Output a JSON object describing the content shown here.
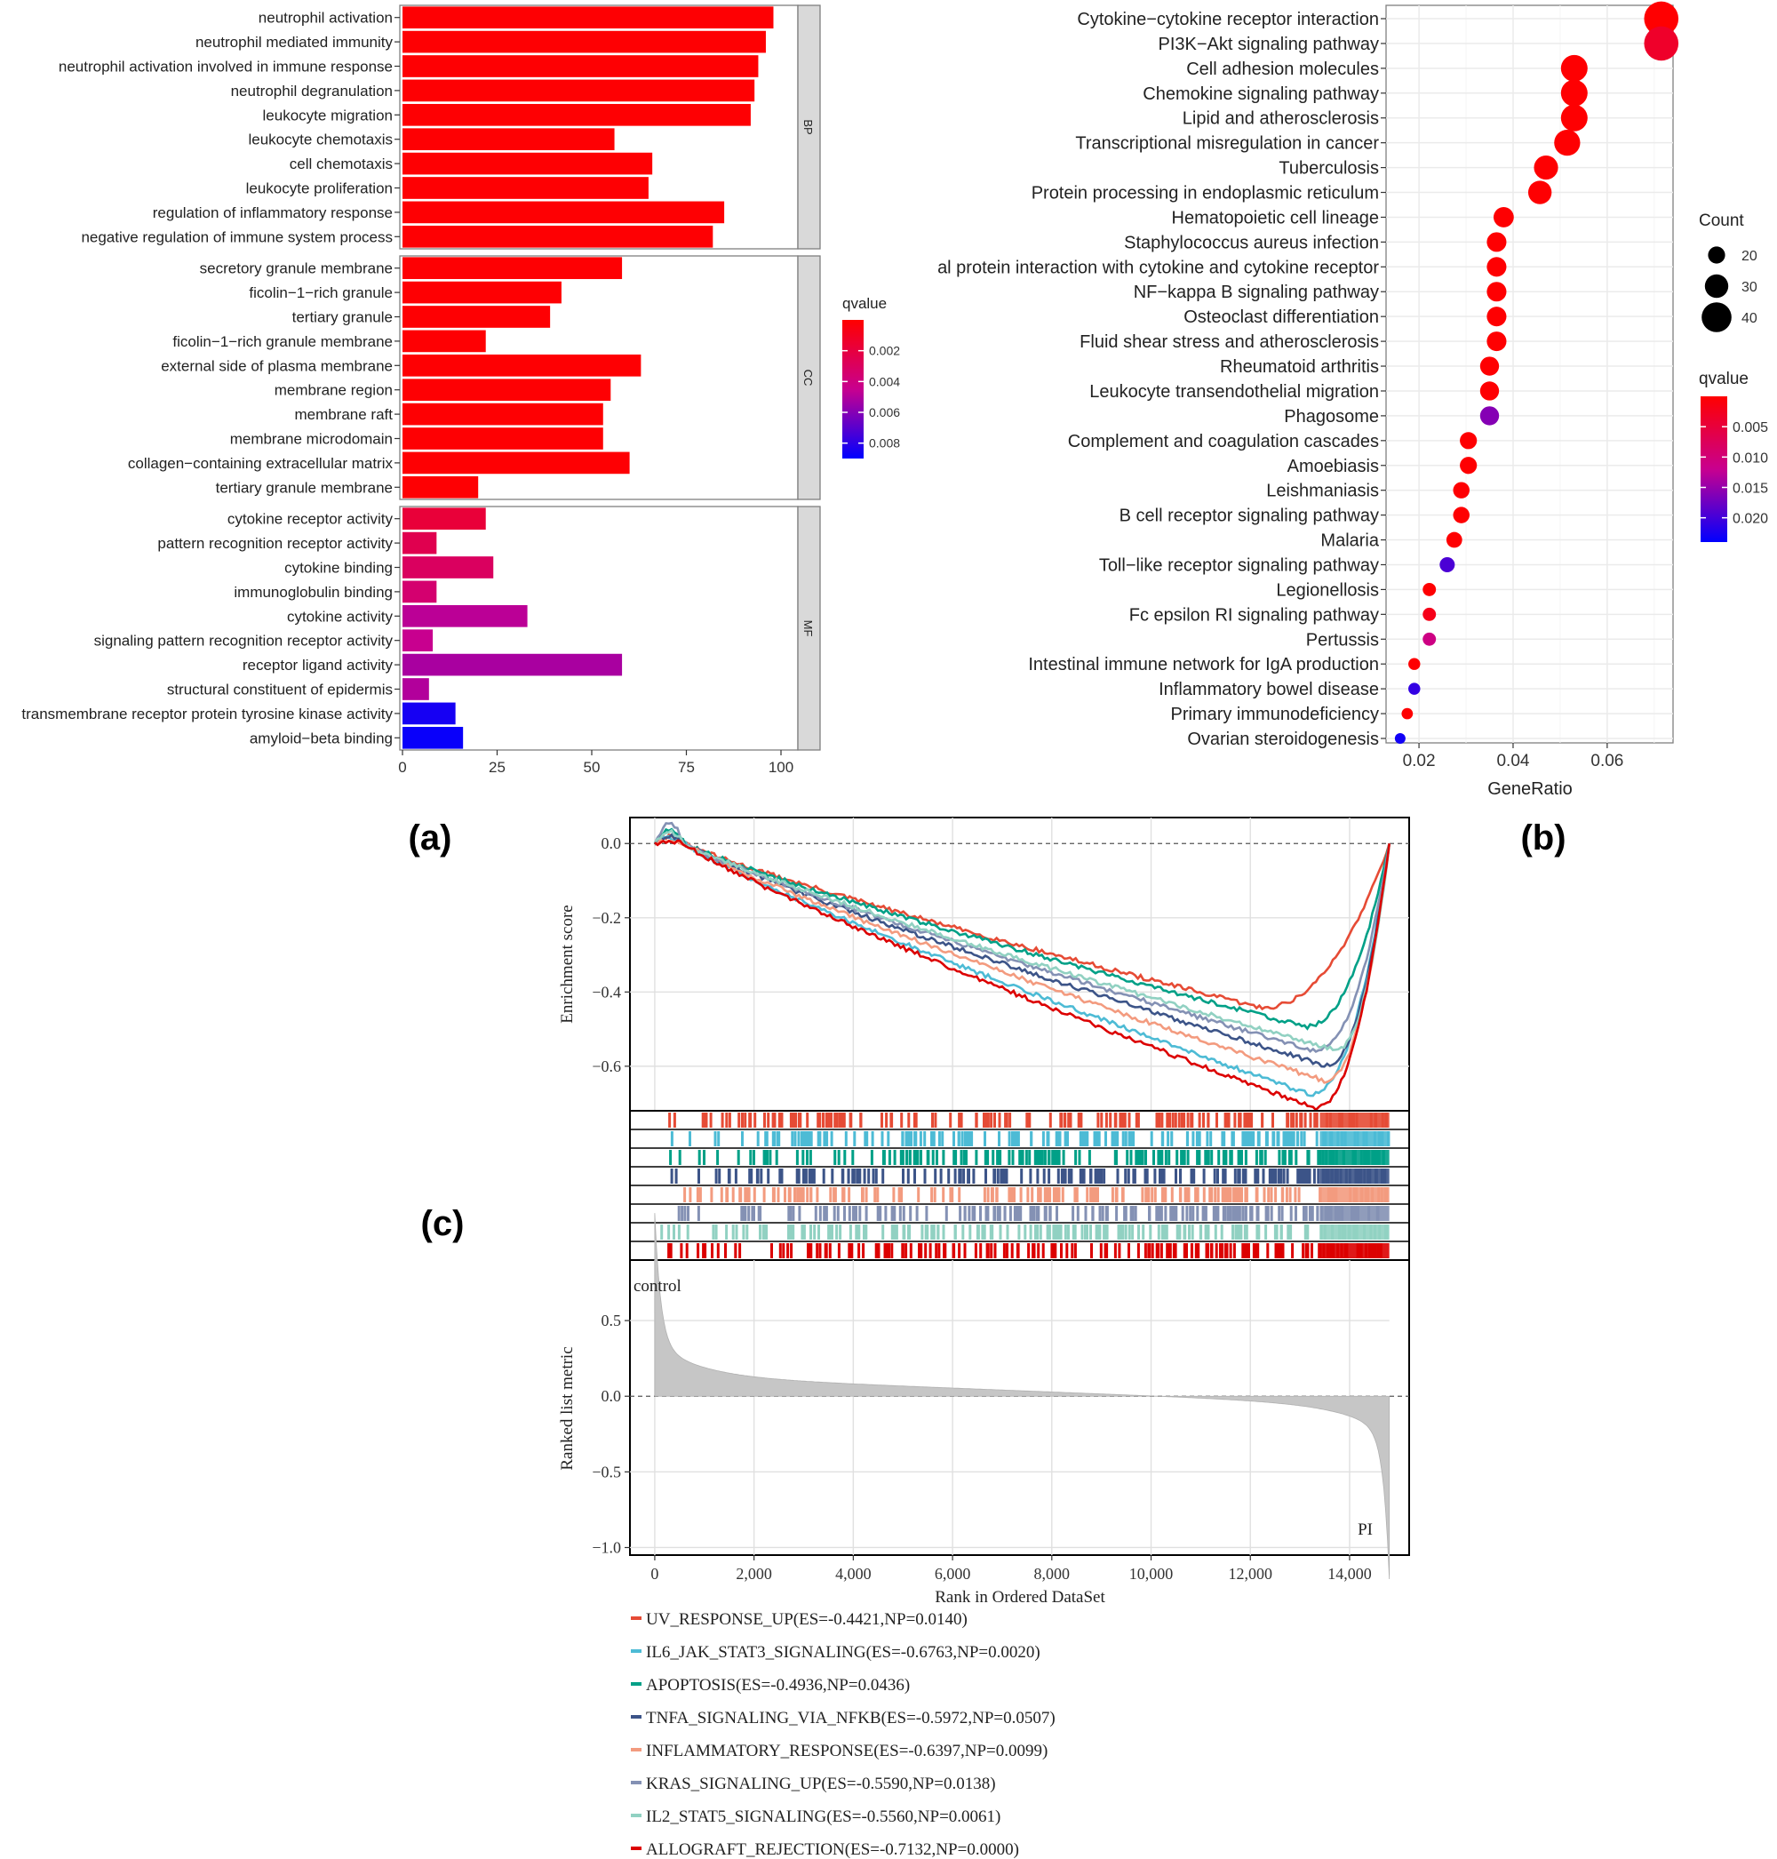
{
  "colors": {
    "qvalue_low": "#ff0000",
    "qvalue_high": "#0000ff",
    "panel_bg": "#ffffff",
    "grid": "#ebebeb",
    "strip": "#d9d9d9",
    "metric_fill": "#bfbfbf"
  },
  "labels": {
    "a": "(a)",
    "b": "(b)",
    "c": "(c)"
  },
  "chart_data": [
    {
      "id": "a",
      "type": "bar",
      "orientation": "horizontal",
      "xlim": [
        0,
        100
      ],
      "xticks": [
        0,
        25,
        50,
        75,
        100
      ],
      "facets": [
        {
          "name": "BP",
          "bars": [
            {
              "term": "neutrophil activation",
              "count": 98,
              "qvalue": 0.0001
            },
            {
              "term": "neutrophil mediated immunity",
              "count": 96,
              "qvalue": 0.0001
            },
            {
              "term": "neutrophil activation involved in immune response",
              "count": 94,
              "qvalue": 0.0001
            },
            {
              "term": "neutrophil degranulation",
              "count": 93,
              "qvalue": 0.0001
            },
            {
              "term": "leukocyte migration",
              "count": 92,
              "qvalue": 0.0001
            },
            {
              "term": "leukocyte chemotaxis",
              "count": 56,
              "qvalue": 0.0001
            },
            {
              "term": "cell chemotaxis",
              "count": 66,
              "qvalue": 0.0001
            },
            {
              "term": "leukocyte proliferation",
              "count": 65,
              "qvalue": 0.0001
            },
            {
              "term": "regulation of inflammatory response",
              "count": 85,
              "qvalue": 0.0001
            },
            {
              "term": "negative regulation of immune system process",
              "count": 82,
              "qvalue": 0.0001
            }
          ]
        },
        {
          "name": "CC",
          "bars": [
            {
              "term": "secretory granule membrane",
              "count": 58,
              "qvalue": 0.0001
            },
            {
              "term": "ficolin−1−rich granule",
              "count": 42,
              "qvalue": 0.0001
            },
            {
              "term": "tertiary granule",
              "count": 39,
              "qvalue": 0.0001
            },
            {
              "term": "ficolin−1−rich granule membrane",
              "count": 22,
              "qvalue": 0.0001
            },
            {
              "term": "external side of plasma membrane",
              "count": 63,
              "qvalue": 0.0001
            },
            {
              "term": "membrane region",
              "count": 55,
              "qvalue": 0.0001
            },
            {
              "term": "membrane raft",
              "count": 53,
              "qvalue": 0.0001
            },
            {
              "term": "membrane microdomain",
              "count": 53,
              "qvalue": 0.0001
            },
            {
              "term": "collagen−containing extracellular matrix",
              "count": 60,
              "qvalue": 0.0001
            },
            {
              "term": "tertiary granule membrane",
              "count": 20,
              "qvalue": 0.0001
            }
          ]
        },
        {
          "name": "MF",
          "bars": [
            {
              "term": "cytokine receptor activity",
              "count": 22,
              "qvalue": 0.0018
            },
            {
              "term": "pattern recognition receptor activity",
              "count": 9,
              "qvalue": 0.0025
            },
            {
              "term": "cytokine binding",
              "count": 24,
              "qvalue": 0.003
            },
            {
              "term": "immunoglobulin binding",
              "count": 9,
              "qvalue": 0.0035
            },
            {
              "term": "cytokine activity",
              "count": 33,
              "qvalue": 0.0048
            },
            {
              "term": "signaling pattern recognition receptor activity",
              "count": 8,
              "qvalue": 0.0045
            },
            {
              "term": "receptor ligand activity",
              "count": 58,
              "qvalue": 0.0052
            },
            {
              "term": "structural constituent of epidermis",
              "count": 7,
              "qvalue": 0.005
            },
            {
              "term": "transmembrane receptor protein tyrosine kinase activity",
              "count": 14,
              "qvalue": 0.0085
            },
            {
              "term": "amyloid−beta binding",
              "count": 16,
              "qvalue": 0.0088
            }
          ]
        }
      ],
      "legend": {
        "title": "qvalue",
        "domain": [
          0.0,
          0.009
        ],
        "ticks": [
          {
            "value": 0.002,
            "label": "0.002"
          },
          {
            "value": 0.004,
            "label": "0.004"
          },
          {
            "value": 0.006,
            "label": "0.006"
          },
          {
            "value": 0.008,
            "label": "0.008"
          }
        ]
      }
    },
    {
      "id": "b",
      "type": "scatter",
      "xlabel": "GeneRatio",
      "xlim": [
        0.013,
        0.074
      ],
      "xticks": [
        {
          "value": 0.02,
          "label": "0.02"
        },
        {
          "value": 0.04,
          "label": "0.04"
        },
        {
          "value": 0.06,
          "label": "0.06"
        }
      ],
      "points": [
        {
          "term": "Cytokine−cytokine receptor interaction",
          "gene_ratio": 0.0715,
          "count": 47,
          "qvalue": 0.0001
        },
        {
          "term": "PI3K−Akt signaling pathway",
          "gene_ratio": 0.0715,
          "count": 47,
          "qvalue": 0.0035
        },
        {
          "term": "Cell adhesion molecules",
          "gene_ratio": 0.053,
          "count": 35,
          "qvalue": 0.0002
        },
        {
          "term": "Chemokine signaling pathway",
          "gene_ratio": 0.053,
          "count": 35,
          "qvalue": 0.0002
        },
        {
          "term": "Lipid and atherosclerosis",
          "gene_ratio": 0.053,
          "count": 35,
          "qvalue": 0.0002
        },
        {
          "term": "Transcriptional misregulation in cancer",
          "gene_ratio": 0.0515,
          "count": 34,
          "qvalue": 0.0002
        },
        {
          "term": "Tuberculosis",
          "gene_ratio": 0.047,
          "count": 31,
          "qvalue": 0.0002
        },
        {
          "term": "Protein processing in endoplasmic reticulum",
          "gene_ratio": 0.0457,
          "count": 30,
          "qvalue": 0.0002
        },
        {
          "term": "Hematopoietic cell lineage",
          "gene_ratio": 0.038,
          "count": 25,
          "qvalue": 0.0002
        },
        {
          "term": "Staphylococcus aureus infection",
          "gene_ratio": 0.0365,
          "count": 24,
          "qvalue": 0.0002
        },
        {
          "term": "al protein interaction with cytokine and cytokine receptor",
          "gene_ratio": 0.0365,
          "count": 24,
          "qvalue": 0.0002
        },
        {
          "term": "NF−kappa B signaling pathway",
          "gene_ratio": 0.0365,
          "count": 24,
          "qvalue": 0.0002
        },
        {
          "term": "Osteoclast differentiation",
          "gene_ratio": 0.0365,
          "count": 24,
          "qvalue": 0.0002
        },
        {
          "term": "Fluid shear stress and atherosclerosis",
          "gene_ratio": 0.0365,
          "count": 24,
          "qvalue": 0.0002
        },
        {
          "term": "Rheumatoid arthritis",
          "gene_ratio": 0.035,
          "count": 23,
          "qvalue": 0.0002
        },
        {
          "term": "Leukocyte transendothelial migration",
          "gene_ratio": 0.035,
          "count": 23,
          "qvalue": 0.0002
        },
        {
          "term": "Phagosome",
          "gene_ratio": 0.035,
          "count": 23,
          "qvalue": 0.016
        },
        {
          "term": "Complement and coagulation cascades",
          "gene_ratio": 0.0305,
          "count": 20,
          "qvalue": 0.0002
        },
        {
          "term": "Amoebiasis",
          "gene_ratio": 0.0305,
          "count": 20,
          "qvalue": 0.0002
        },
        {
          "term": "Leishmaniasis",
          "gene_ratio": 0.029,
          "count": 19,
          "qvalue": 0.0002
        },
        {
          "term": "B cell receptor signaling pathway",
          "gene_ratio": 0.029,
          "count": 19,
          "qvalue": 0.0002
        },
        {
          "term": "Malaria",
          "gene_ratio": 0.0275,
          "count": 18,
          "qvalue": 0.0002
        },
        {
          "term": "Toll−like receptor signaling pathway",
          "gene_ratio": 0.026,
          "count": 17,
          "qvalue": 0.0195
        },
        {
          "term": "Legionellosis",
          "gene_ratio": 0.0222,
          "count": 14,
          "qvalue": 0.0002
        },
        {
          "term": "Fc epsilon RI signaling pathway",
          "gene_ratio": 0.0222,
          "count": 14,
          "qvalue": 0.002
        },
        {
          "term": "Pertussis",
          "gene_ratio": 0.0222,
          "count": 14,
          "qvalue": 0.011
        },
        {
          "term": "Intestinal immune network for IgA production",
          "gene_ratio": 0.019,
          "count": 12,
          "qvalue": 0.0002
        },
        {
          "term": "Inflammatory bowel disease",
          "gene_ratio": 0.019,
          "count": 12,
          "qvalue": 0.021
        },
        {
          "term": "Primary immunodeficiency",
          "gene_ratio": 0.0175,
          "count": 11,
          "qvalue": 0.0002
        },
        {
          "term": "Ovarian steroidogenesis",
          "gene_ratio": 0.016,
          "count": 10,
          "qvalue": 0.023
        }
      ],
      "count_legend": {
        "title": "Count",
        "values": [
          20,
          30,
          40
        ]
      },
      "qvalue_legend": {
        "title": "qvalue",
        "domain": [
          0.0,
          0.024
        ],
        "ticks": [
          {
            "value": 0.005,
            "label": "0.005"
          },
          {
            "value": 0.01,
            "label": "0.010"
          },
          {
            "value": 0.015,
            "label": "0.015"
          },
          {
            "value": 0.02,
            "label": "0.020"
          }
        ]
      }
    },
    {
      "id": "c",
      "type": "line",
      "subtype": "gsea",
      "xlabel": "Rank in Ordered DataSet",
      "ylabel_top": "Enrichment score",
      "ylabel_bottom": "Ranked list metric",
      "xlim": [
        -500,
        15200
      ],
      "xticks": [
        {
          "value": 0,
          "label": "0"
        },
        {
          "value": 2000,
          "label": "2,000"
        },
        {
          "value": 4000,
          "label": "4,000"
        },
        {
          "value": 6000,
          "label": "6,000"
        },
        {
          "value": 8000,
          "label": "8,000"
        },
        {
          "value": 10000,
          "label": "10,000"
        },
        {
          "value": 12000,
          "label": "12,000"
        },
        {
          "value": 14000,
          "label": "14,000"
        }
      ],
      "es_ylim": [
        -0.72,
        0.07
      ],
      "es_yticks": [
        {
          "value": 0,
          "label": "0.0"
        },
        {
          "value": -0.2,
          "label": "−0.2"
        },
        {
          "value": -0.4,
          "label": "−0.4"
        },
        {
          "value": -0.6,
          "label": "−0.6"
        }
      ],
      "metric_ylim": [
        -1.05,
        0.9
      ],
      "metric_yticks": [
        {
          "value": 0.5,
          "label": "0.5"
        },
        {
          "value": 0,
          "label": "0.0"
        },
        {
          "value": -0.5,
          "label": "−0.5"
        },
        {
          "value": -1.0,
          "label": "−1.0"
        }
      ],
      "annotations": {
        "left": "control",
        "right": "PI"
      },
      "n_genes": 14800,
      "series": [
        {
          "name": "UV_RESPONSE_UP",
          "legend": "UV_RESPONSE_UP(ES=-0.4421,NP=0.0140)",
          "color": "#e64b35",
          "es": -0.4421,
          "min_rank": 12200,
          "start_peak": 0.02
        },
        {
          "name": "IL6_JAK_STAT3_SIGNALING",
          "legend": "IL6_JAK_STAT3_SIGNALING(ES=-0.6763,NP=0.0020)",
          "color": "#4dbbd5",
          "es": -0.6763,
          "min_rank": 13200,
          "start_peak": 0.015
        },
        {
          "name": "APOPTOSIS",
          "legend": "APOPTOSIS(ES=-0.4936,NP=0.0436)",
          "color": "#00a087",
          "es": -0.4936,
          "min_rank": 13100,
          "start_peak": 0.04
        },
        {
          "name": "TNFA_SIGNALING_VIA_NFKB",
          "legend": "TNFA_SIGNALING_VIA_NFKB(ES=-0.5972,NP=0.0507)",
          "color": "#3c5488",
          "es": -0.5972,
          "min_rank": 13500,
          "start_peak": 0.02
        },
        {
          "name": "INFLAMMATORY_RESPONSE",
          "legend": "INFLAMMATORY_RESPONSE(ES=-0.6397,NP=0.0099)",
          "color": "#f39b7f",
          "es": -0.6397,
          "min_rank": 13500,
          "start_peak": 0.01
        },
        {
          "name": "KRAS_SIGNALING_UP",
          "legend": "KRAS_SIGNALING_UP(ES=-0.5590,NP=0.0138)",
          "color": "#8491b4",
          "es": -0.559,
          "min_rank": 13300,
          "start_peak": 0.055
        },
        {
          "name": "IL2_STAT5_SIGNALING",
          "legend": "IL2_STAT5_SIGNALING(ES=-0.5560,NP=0.0061)",
          "color": "#91d1c2",
          "es": -0.556,
          "min_rank": 13700,
          "start_peak": 0.03
        },
        {
          "name": "ALLOGRAFT_REJECTION",
          "legend": "ALLOGRAFT_REJECTION(ES=-0.7132,NP=0.0000)",
          "color": "#dc0000",
          "es": -0.7132,
          "min_rank": 13300,
          "start_peak": 0.005
        }
      ]
    }
  ]
}
